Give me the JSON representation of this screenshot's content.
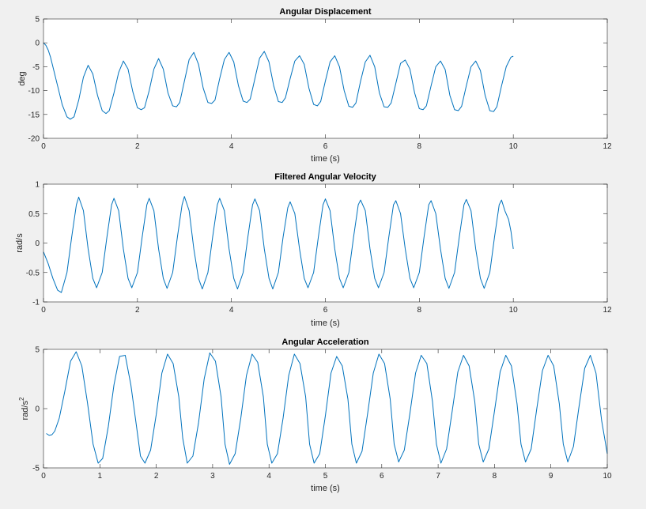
{
  "figure_background": "#f0f0f0",
  "axes_background": "#ffffff",
  "line_color": "#0072bd",
  "chart_data": [
    {
      "type": "line",
      "title": "Angular Displacement",
      "xlabel": "time (s)",
      "ylabel": "deg",
      "ylabel_sup": "",
      "xlim": [
        0,
        12
      ],
      "ylim": [
        -20,
        5
      ],
      "xticks": [
        0,
        2,
        4,
        6,
        8,
        10,
        12
      ],
      "yticks": [
        5,
        0,
        -5,
        -10,
        -15,
        -20
      ],
      "xtick_labels": [
        "0",
        "2",
        "4",
        "6",
        "8",
        "10",
        "12"
      ],
      "ytick_labels": [
        "5",
        "0",
        "-5",
        "-10",
        "-15",
        "-20"
      ],
      "grid": false,
      "series": [
        {
          "x": [
            0,
            0.05,
            0.1,
            0.15,
            0.2,
            0.3,
            0.4,
            0.5,
            0.57,
            0.65,
            0.75,
            0.85,
            0.95,
            1.05,
            1.15,
            1.25,
            1.33,
            1.4,
            1.5,
            1.6,
            1.7,
            1.8,
            1.9,
            2.0,
            2.08,
            2.15,
            2.25,
            2.35,
            2.45,
            2.55,
            2.65,
            2.75,
            2.83,
            2.9,
            3.0,
            3.1,
            3.2,
            3.3,
            3.4,
            3.5,
            3.58,
            3.65,
            3.75,
            3.85,
            3.95,
            4.05,
            4.15,
            4.25,
            4.33,
            4.4,
            4.5,
            4.6,
            4.7,
            4.8,
            4.9,
            5.0,
            5.08,
            5.15,
            5.25,
            5.35,
            5.45,
            5.55,
            5.65,
            5.75,
            5.83,
            5.9,
            6.0,
            6.1,
            6.2,
            6.3,
            6.4,
            6.5,
            6.58,
            6.65,
            6.75,
            6.85,
            6.95,
            7.05,
            7.15,
            7.25,
            7.33,
            7.4,
            7.5,
            7.6,
            7.7,
            7.8,
            7.9,
            8.0,
            8.08,
            8.15,
            8.25,
            8.35,
            8.45,
            8.55,
            8.65,
            8.75,
            8.83,
            8.9,
            9.0,
            9.1,
            9.2,
            9.3,
            9.4,
            9.5,
            9.58,
            9.65,
            9.75,
            9.85,
            9.95,
            10.0
          ],
          "y": [
            0,
            -0.5,
            -1.5,
            -3,
            -5,
            -9,
            -13,
            -15.5,
            -16,
            -15.5,
            -12,
            -7.2,
            -4.7,
            -6.5,
            -11,
            -14.2,
            -14.8,
            -14.2,
            -10.5,
            -6.2,
            -3.8,
            -5.5,
            -10.2,
            -13.6,
            -14,
            -13.6,
            -10,
            -5.5,
            -3.3,
            -5.5,
            -10.5,
            -13.2,
            -13.4,
            -12.5,
            -8,
            -3.5,
            -2,
            -4.5,
            -9.5,
            -12.5,
            -12.7,
            -12,
            -7.5,
            -3.5,
            -2,
            -4,
            -9,
            -12.2,
            -12.5,
            -11.8,
            -7.5,
            -3.2,
            -1.8,
            -4,
            -9,
            -12.3,
            -12.5,
            -11.5,
            -7.5,
            -3.8,
            -2.7,
            -4.5,
            -9.5,
            -12.9,
            -13.2,
            -12.3,
            -8,
            -4,
            -2.7,
            -5,
            -10,
            -13.3,
            -13.5,
            -12.6,
            -8,
            -4,
            -2.6,
            -5,
            -10.5,
            -13.4,
            -13.5,
            -12.6,
            -8.5,
            -4.3,
            -3.6,
            -5.5,
            -10.5,
            -13.8,
            -14,
            -13.2,
            -9,
            -5,
            -3.8,
            -5.6,
            -11,
            -14,
            -14.2,
            -13.3,
            -9,
            -5,
            -3.8,
            -5.8,
            -11,
            -14.2,
            -14.4,
            -13.4,
            -9,
            -5,
            -3,
            -2.8
          ]
        }
      ]
    },
    {
      "type": "line",
      "title": "Filtered Angular Velocity",
      "xlabel": "time (s)",
      "ylabel": "rad/s",
      "ylabel_sup": "",
      "xlim": [
        0,
        12
      ],
      "ylim": [
        -1,
        1
      ],
      "xticks": [
        0,
        2,
        4,
        6,
        8,
        10,
        12
      ],
      "yticks": [
        1,
        0.5,
        0,
        -0.5,
        -1
      ],
      "xtick_labels": [
        "0",
        "2",
        "4",
        "6",
        "8",
        "10",
        "12"
      ],
      "ytick_labels": [
        "1",
        "0.5",
        "0",
        "-0.5",
        "-1"
      ],
      "grid": false,
      "series": [
        {
          "x": [
            0,
            0.1,
            0.2,
            0.3,
            0.38,
            0.5,
            0.6,
            0.7,
            0.75,
            0.85,
            0.95,
            1.05,
            1.13,
            1.25,
            1.35,
            1.45,
            1.5,
            1.6,
            1.7,
            1.8,
            1.88,
            2.0,
            2.1,
            2.2,
            2.25,
            2.35,
            2.45,
            2.55,
            2.63,
            2.75,
            2.85,
            2.95,
            3.0,
            3.1,
            3.2,
            3.3,
            3.38,
            3.5,
            3.6,
            3.7,
            3.75,
            3.85,
            3.95,
            4.05,
            4.13,
            4.25,
            4.35,
            4.45,
            4.5,
            4.6,
            4.7,
            4.8,
            4.88,
            5.0,
            5.1,
            5.2,
            5.25,
            5.35,
            5.45,
            5.55,
            5.63,
            5.75,
            5.85,
            5.95,
            6.0,
            6.1,
            6.2,
            6.3,
            6.38,
            6.5,
            6.6,
            6.7,
            6.75,
            6.85,
            6.95,
            7.05,
            7.13,
            7.25,
            7.35,
            7.45,
            7.5,
            7.6,
            7.7,
            7.8,
            7.88,
            8.0,
            8.1,
            8.2,
            8.25,
            8.35,
            8.45,
            8.55,
            8.63,
            8.75,
            8.85,
            8.95,
            9.0,
            9.1,
            9.2,
            9.3,
            9.38,
            9.5,
            9.6,
            9.7,
            9.75,
            9.82,
            9.9,
            9.95,
            10.0
          ],
          "y": [
            -0.15,
            -0.35,
            -0.6,
            -0.8,
            -0.84,
            -0.5,
            0.1,
            0.65,
            0.78,
            0.55,
            -0.1,
            -0.6,
            -0.76,
            -0.5,
            0.1,
            0.65,
            0.76,
            0.55,
            -0.1,
            -0.6,
            -0.76,
            -0.5,
            0.1,
            0.65,
            0.76,
            0.55,
            -0.1,
            -0.6,
            -0.77,
            -0.5,
            0.1,
            0.65,
            0.79,
            0.55,
            -0.1,
            -0.6,
            -0.78,
            -0.5,
            0.1,
            0.65,
            0.76,
            0.55,
            -0.1,
            -0.6,
            -0.78,
            -0.5,
            0.1,
            0.65,
            0.75,
            0.55,
            -0.1,
            -0.6,
            -0.78,
            -0.5,
            0.1,
            0.6,
            0.7,
            0.5,
            -0.1,
            -0.6,
            -0.76,
            -0.5,
            0.1,
            0.65,
            0.75,
            0.55,
            -0.1,
            -0.6,
            -0.76,
            -0.5,
            0.1,
            0.65,
            0.73,
            0.55,
            -0.1,
            -0.6,
            -0.76,
            -0.5,
            0.1,
            0.65,
            0.72,
            0.5,
            -0.1,
            -0.6,
            -0.76,
            -0.5,
            0.1,
            0.65,
            0.72,
            0.5,
            -0.1,
            -0.6,
            -0.77,
            -0.5,
            0.1,
            0.65,
            0.74,
            0.55,
            -0.1,
            -0.6,
            -0.77,
            -0.5,
            0.1,
            0.65,
            0.73,
            0.55,
            0.4,
            0.2,
            -0.1
          ]
        }
      ]
    },
    {
      "type": "line",
      "title": "Angular Acceleration",
      "xlabel": "time (s)",
      "ylabel": "rad/s",
      "ylabel_sup": "2",
      "xlim": [
        0,
        10
      ],
      "ylim": [
        -5,
        5
      ],
      "xticks": [
        0,
        1,
        2,
        3,
        4,
        5,
        6,
        7,
        8,
        9,
        10
      ],
      "yticks": [
        5,
        0,
        -5
      ],
      "xtick_labels": [
        "0",
        "1",
        "2",
        "3",
        "4",
        "5",
        "6",
        "7",
        "8",
        "9",
        "10"
      ],
      "ytick_labels": [
        "5",
        "0",
        "-5"
      ],
      "grid": false,
      "series": [
        {
          "x": [
            0.05,
            0.1,
            0.15,
            0.2,
            0.28,
            0.38,
            0.48,
            0.58,
            0.68,
            0.78,
            0.88,
            0.97,
            1.05,
            1.15,
            1.25,
            1.35,
            1.45,
            1.55,
            1.65,
            1.72,
            1.8,
            1.9,
            2.0,
            2.1,
            2.2,
            2.3,
            2.4,
            2.47,
            2.55,
            2.65,
            2.75,
            2.85,
            2.95,
            3.05,
            3.15,
            3.22,
            3.3,
            3.4,
            3.5,
            3.6,
            3.7,
            3.8,
            3.9,
            3.97,
            4.05,
            4.15,
            4.25,
            4.35,
            4.45,
            4.55,
            4.65,
            4.72,
            4.8,
            4.9,
            5.0,
            5.1,
            5.2,
            5.3,
            5.4,
            5.47,
            5.55,
            5.65,
            5.75,
            5.85,
            5.95,
            6.05,
            6.15,
            6.22,
            6.3,
            6.4,
            6.5,
            6.6,
            6.7,
            6.8,
            6.9,
            6.97,
            7.05,
            7.15,
            7.25,
            7.35,
            7.45,
            7.55,
            7.65,
            7.72,
            7.8,
            7.9,
            8.0,
            8.1,
            8.2,
            8.3,
            8.4,
            8.47,
            8.55,
            8.65,
            8.75,
            8.85,
            8.95,
            9.05,
            9.15,
            9.22,
            9.3,
            9.4,
            9.5,
            9.6,
            9.7,
            9.8,
            9.9,
            10.0
          ],
          "y": [
            -2.1,
            -2.25,
            -2.2,
            -1.9,
            -0.8,
            1.5,
            4.0,
            4.8,
            3.6,
            0.5,
            -3.0,
            -4.6,
            -4.2,
            -1.5,
            2.0,
            4.4,
            4.5,
            2.0,
            -1.5,
            -4.0,
            -4.6,
            -3.5,
            -0.5,
            3.0,
            4.6,
            3.8,
            1.0,
            -2.5,
            -4.6,
            -4.0,
            -1.2,
            2.5,
            4.7,
            4.0,
            1.0,
            -3.0,
            -4.7,
            -3.8,
            -0.8,
            2.8,
            4.6,
            3.9,
            1.0,
            -3.0,
            -4.6,
            -3.8,
            -0.8,
            2.8,
            4.6,
            3.8,
            1.0,
            -3.0,
            -4.6,
            -3.8,
            -0.6,
            3.0,
            4.4,
            3.6,
            0.8,
            -3.0,
            -4.6,
            -3.6,
            -0.4,
            3.0,
            4.6,
            3.8,
            0.8,
            -3.0,
            -4.5,
            -3.5,
            -0.4,
            3.0,
            4.5,
            3.8,
            0.6,
            -3.0,
            -4.6,
            -3.4,
            -0.2,
            3.1,
            4.5,
            3.6,
            0.6,
            -3.0,
            -4.5,
            -3.4,
            -0.2,
            3.1,
            4.5,
            3.6,
            0.4,
            -3.0,
            -4.5,
            -3.4,
            0.0,
            3.2,
            4.5,
            3.6,
            0.4,
            -3.0,
            -4.5,
            -3.2,
            0.2,
            3.4,
            4.5,
            3.0,
            -1.0,
            -3.8
          ]
        }
      ]
    }
  ]
}
